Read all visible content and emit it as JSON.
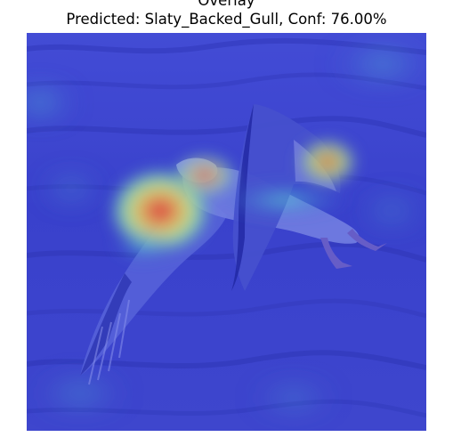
{
  "figure": {
    "title_top": "Overlay",
    "title_main": "Predicted: Slaty_Backed_Gull, Conf: 76.00%"
  },
  "image": {
    "subject": "gull-in-flight-over-water",
    "overlay": "attention-heatmap",
    "colors": {
      "background": "#3d45cf",
      "water_dark": "#2f36b4",
      "heat_red": "#e8412e",
      "heat_yellow": "#f2e15a",
      "heat_cyan": "#59e6d5"
    }
  }
}
